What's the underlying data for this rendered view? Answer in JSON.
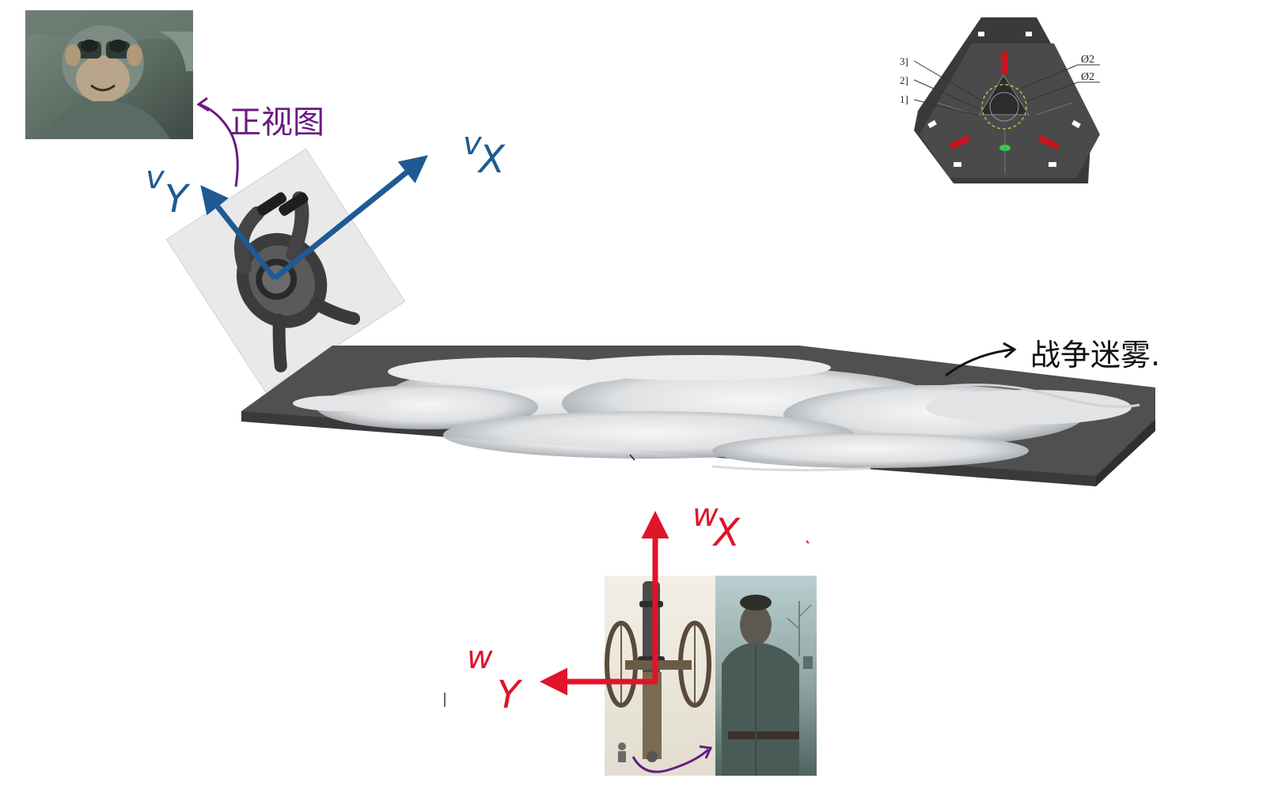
{
  "annotations": {
    "front_view_label": "正视图",
    "fog_of_war_label": "战争迷雾.",
    "v_axis": {
      "x_main": "v",
      "x_sub": "X",
      "y_main": "v",
      "y_sub": "Y"
    },
    "w_axis": {
      "x_main": "w",
      "x_sub": "X",
      "y_main": "w",
      "y_sub": "Y"
    }
  },
  "schematic": {
    "callouts": [
      "3]",
      "2]",
      "1]"
    ],
    "diameter_labels": [
      "Ø2",
      "Ø2"
    ]
  },
  "colors": {
    "v_axis": "#1f5a94",
    "w_axis": "#e0142a",
    "annotation_purple": "#6a1a83",
    "fog_slab": "#505050",
    "schematic_body": "#3a3a3a",
    "schematic_accent": "#c8141e"
  },
  "images": {
    "top_left_photo": "soldier-with-binoculars-photo",
    "observer_illustration": "top-down-binocular-soldier-illustration",
    "fog_plane": "fog-of-war-cloud-slab",
    "schematic": "triangular-fortress-schematic",
    "cannon_illustration": "cannon-illustration",
    "soldier_photo": "standing-soldier-photo"
  }
}
